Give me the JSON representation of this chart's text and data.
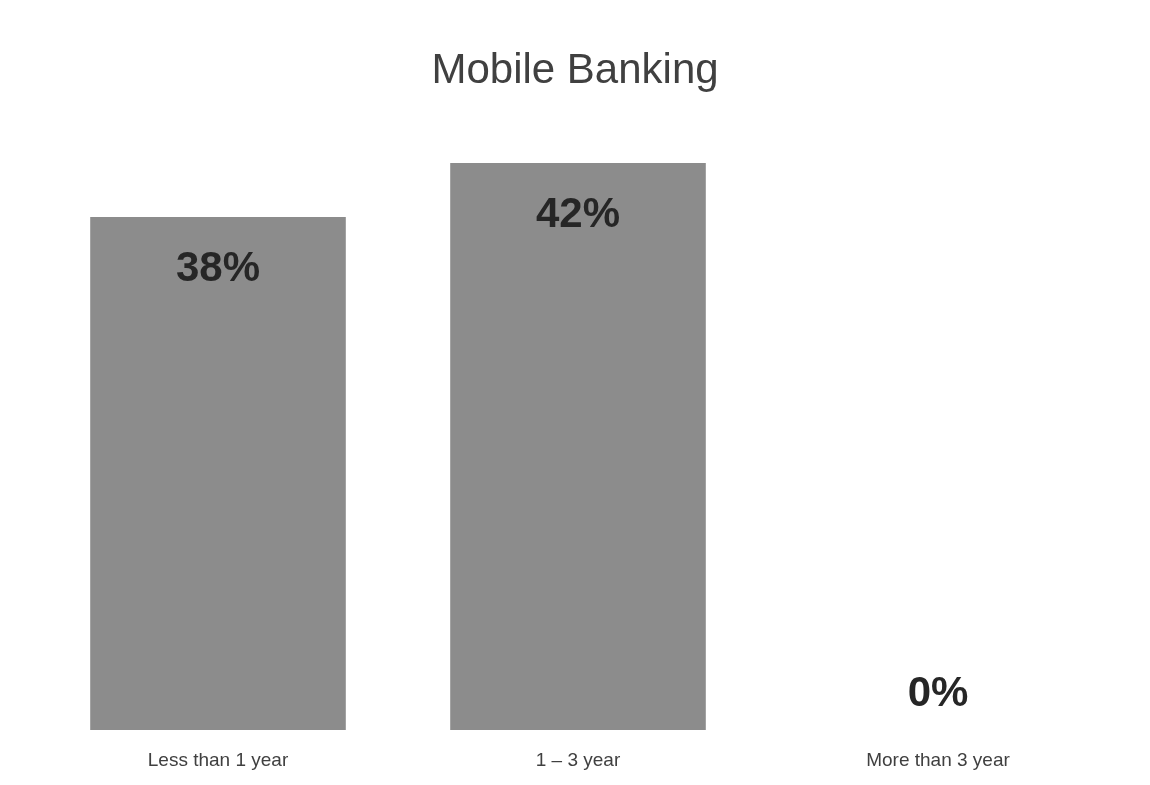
{
  "chart_data": {
    "type": "bar",
    "title": "Mobile Banking",
    "categories": [
      "Less than 1 year",
      "1 – 3 year",
      "More than 3 year"
    ],
    "values": [
      38,
      42,
      0
    ],
    "value_labels": [
      "38%",
      "42%",
      "0%"
    ],
    "color": "#8c8c8c",
    "tick_labels": "x",
    "grid": false
  }
}
